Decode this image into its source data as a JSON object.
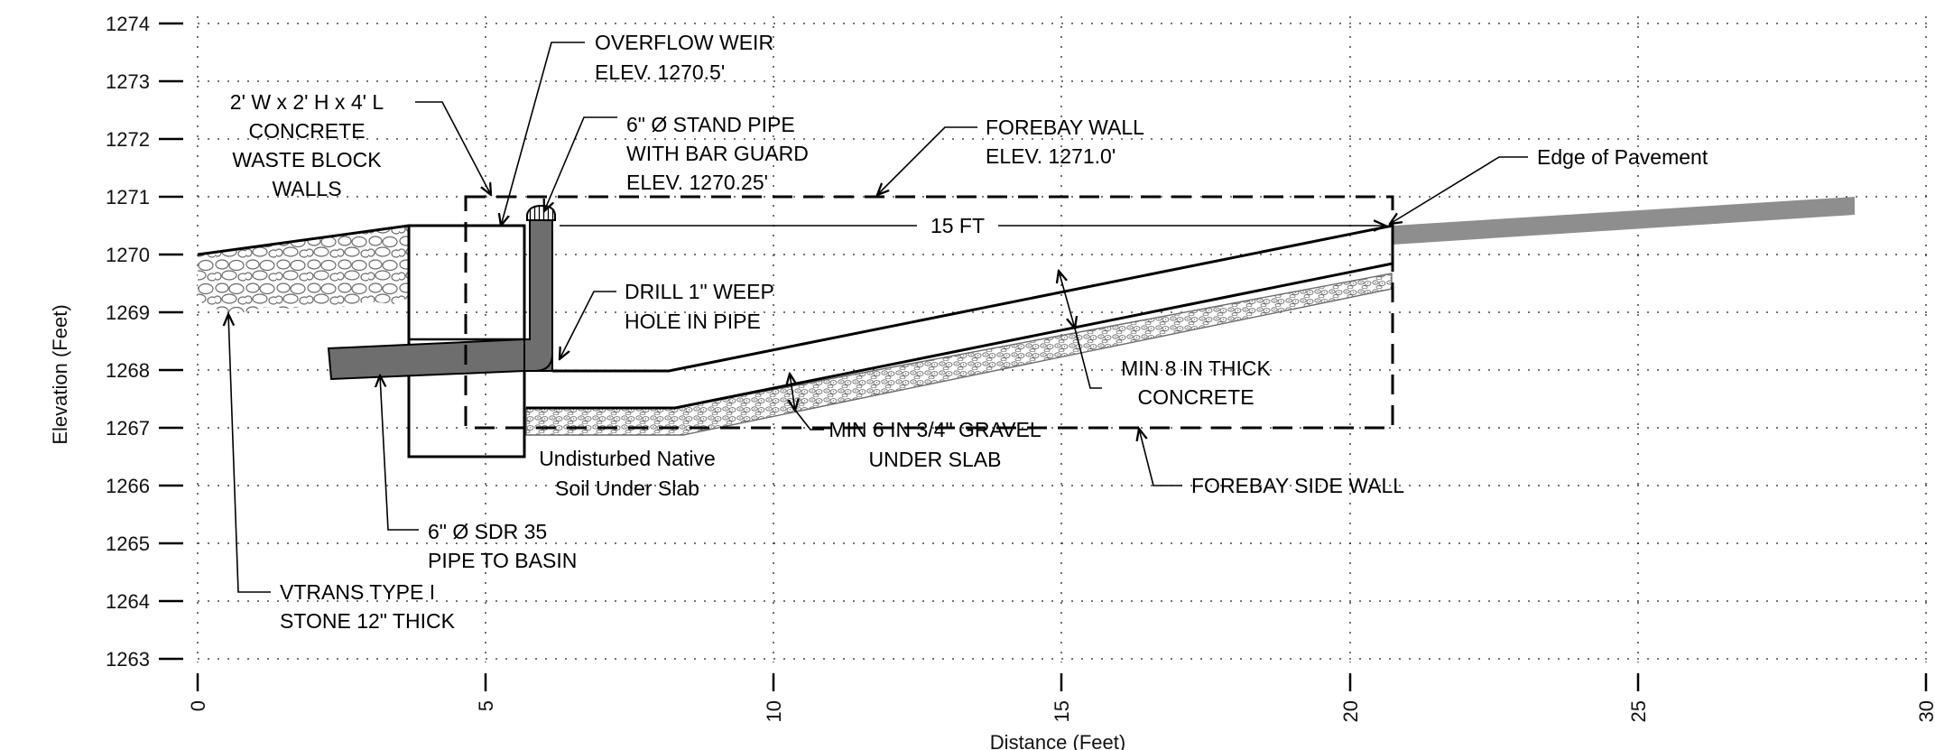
{
  "axes": {
    "xlabel": "Distance (Feet)",
    "ylabel": "Elevation (Feet)",
    "x_ticks": [
      "0",
      "5",
      "10",
      "15",
      "20",
      "25",
      "30"
    ],
    "y_ticks": [
      "1274",
      "1273",
      "1272",
      "1271",
      "1270",
      "1269",
      "1268",
      "1267",
      "1266",
      "1265",
      "1264",
      "1263"
    ],
    "grid": true
  },
  "callouts": {
    "overflow_weir": [
      "OVERFLOW WEIR",
      "ELEV. 1270.5'"
    ],
    "waste_block": [
      "2' W x 2' H x 4' L",
      "CONCRETE",
      "WASTE BLOCK",
      "WALLS"
    ],
    "stand_pipe": [
      "6\" Ø STAND PIPE",
      "WITH BAR GUARD",
      "ELEV. 1270.25'"
    ],
    "forebay_wall": [
      "FOREBAY WALL",
      "ELEV. 1271.0'"
    ],
    "edge_of_pavement": "Edge of Pavement",
    "width_dimension": "15 FT",
    "weep_hole": [
      "DRILL 1\" WEEP",
      "HOLE IN PIPE"
    ],
    "concrete_slab": [
      "MIN 8 IN THICK",
      "CONCRETE"
    ],
    "gravel": [
      "MIN 6 IN 3/4\" GRAVEL",
      "UNDER SLAB"
    ],
    "native_soil": [
      "Undisturbed Native",
      "Soil Under Slab"
    ],
    "side_wall": "FOREBAY SIDE WALL",
    "sdr_pipe": [
      "6\" Ø SDR 35",
      "PIPE TO BASIN"
    ],
    "stone": [
      "VTRANS TYPE I",
      "STONE 12\" THICK"
    ]
  },
  "colors": {
    "pipe": "#6e6e6e",
    "pavement": "#8e8e8e",
    "stone_outline": "#6b6b6b",
    "linework": "#000000"
  }
}
